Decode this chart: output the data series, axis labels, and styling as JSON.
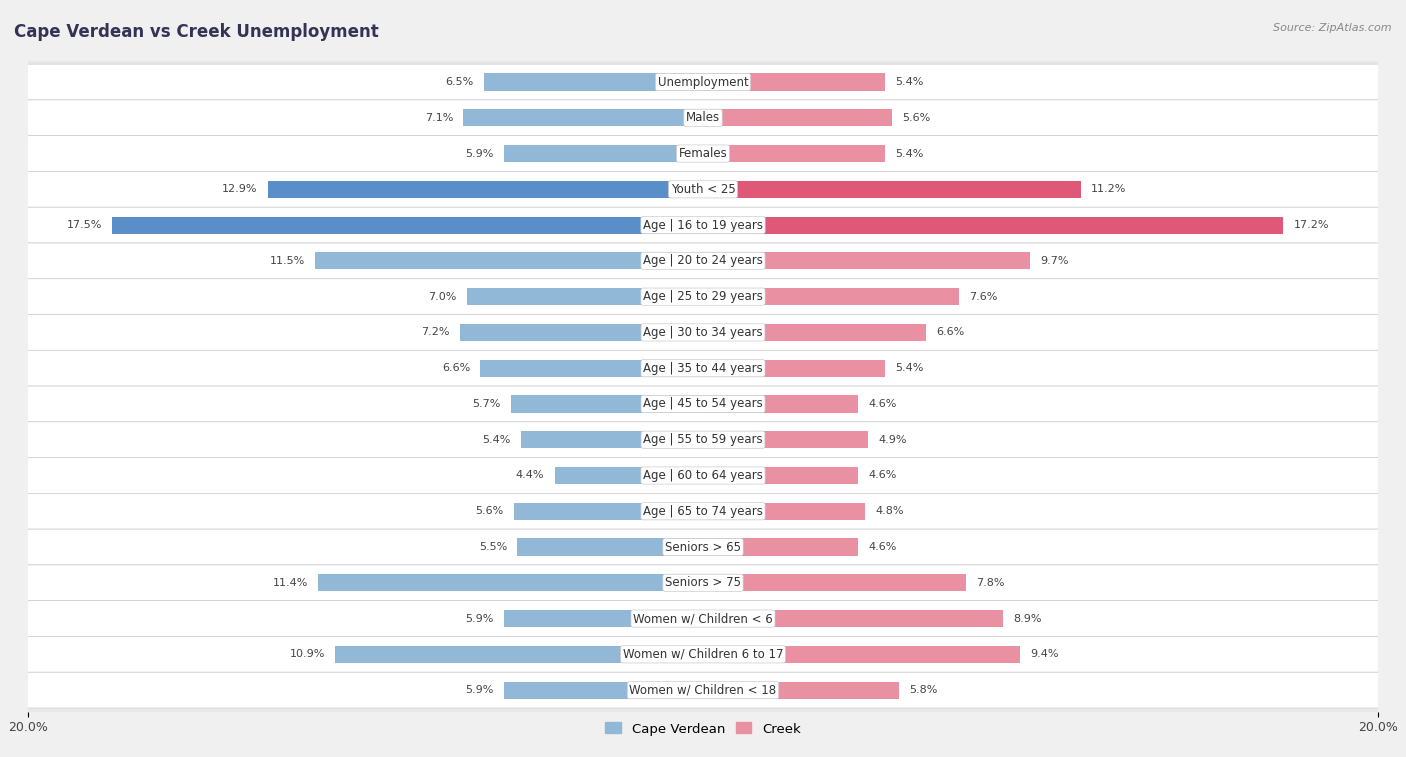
{
  "title": "Cape Verdean vs Creek Unemployment",
  "source": "Source: ZipAtlas.com",
  "categories": [
    "Unemployment",
    "Males",
    "Females",
    "Youth < 25",
    "Age | 16 to 19 years",
    "Age | 20 to 24 years",
    "Age | 25 to 29 years",
    "Age | 30 to 34 years",
    "Age | 35 to 44 years",
    "Age | 45 to 54 years",
    "Age | 55 to 59 years",
    "Age | 60 to 64 years",
    "Age | 65 to 74 years",
    "Seniors > 65",
    "Seniors > 75",
    "Women w/ Children < 6",
    "Women w/ Children 6 to 17",
    "Women w/ Children < 18"
  ],
  "cape_verdean": [
    6.5,
    7.1,
    5.9,
    12.9,
    17.5,
    11.5,
    7.0,
    7.2,
    6.6,
    5.7,
    5.4,
    4.4,
    5.6,
    5.5,
    11.4,
    5.9,
    10.9,
    5.9
  ],
  "creek": [
    5.4,
    5.6,
    5.4,
    11.2,
    17.2,
    9.7,
    7.6,
    6.6,
    5.4,
    4.6,
    4.9,
    4.6,
    4.8,
    4.6,
    7.8,
    8.9,
    9.4,
    5.8
  ],
  "cape_verdean_color": "#92b8d8",
  "creek_color": "#e991a2",
  "highlight_cape_verdean_color": "#5a8ec8",
  "highlight_creek_color": "#e05878",
  "highlight_rows": [
    "Youth < 25",
    "Age | 16 to 19 years"
  ],
  "xlim": 20.0,
  "bar_height": 0.48,
  "row_bg_color": "#ffffff",
  "outer_bg_color": "#e8e8e8",
  "page_bg_color": "#f0f0f0",
  "label_fontsize": 8.5,
  "title_fontsize": 12,
  "legend_fontsize": 9.5,
  "value_fontsize": 8.0,
  "title_color": "#333355"
}
